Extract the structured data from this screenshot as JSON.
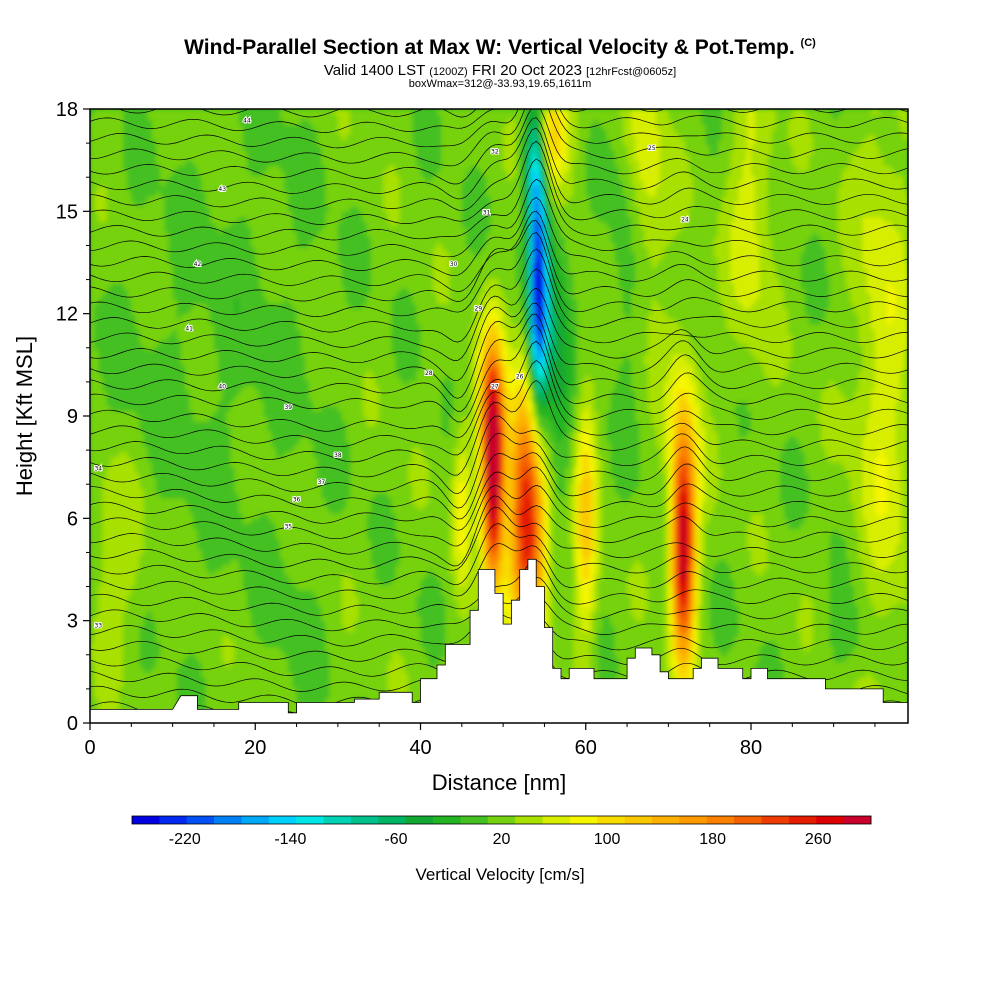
{
  "header": {
    "title": "Wind-Parallel Section at Max W: Vertical Velocity & Pot.Temp.",
    "copyright": "(C)",
    "valid_main": "Valid 1400 LST",
    "valid_utc": "(1200Z)",
    "valid_date": "FRI 20 Oct 2023",
    "forecast_note": "[12hrFcst@0605z]",
    "box_info": "boxWmax=312@-33.93,19.65,1611m"
  },
  "chart_data": {
    "type": "heatmap",
    "title": "Wind-Parallel Section at Max W: Vertical Velocity & Pot.Temp.",
    "xlabel": "Distance [nm]",
    "ylabel": "Height [Kft MSL]",
    "xlim": [
      0,
      99
    ],
    "ylim": [
      0,
      18
    ],
    "x_ticks": [
      0,
      20,
      40,
      60,
      80
    ],
    "y_ticks": [
      0,
      3,
      6,
      9,
      12,
      15,
      18
    ],
    "colorbar": {
      "label": "Vertical Velocity [cm/s]",
      "tick_labels": [
        -220,
        -140,
        -60,
        20,
        100,
        180,
        260
      ],
      "min": -260,
      "max": 300,
      "colors": [
        "#0000e0",
        "#0028f0",
        "#0050f5",
        "#0080f5",
        "#00a8f8",
        "#00d0ff",
        "#00e6e6",
        "#00d2b4",
        "#00c08c",
        "#00b464",
        "#12a832",
        "#22b422",
        "#44c022",
        "#76d210",
        "#a8e000",
        "#d8ee00",
        "#f6f600",
        "#f8dc00",
        "#fac800",
        "#fcb000",
        "#fc9a00",
        "#fa8000",
        "#f46000",
        "#ee3c00",
        "#e61c00",
        "#dc0000",
        "#c8002a"
      ]
    },
    "w_features": [
      {
        "x": 48.8,
        "z": 7.2,
        "w": 300
      },
      {
        "x": 52.5,
        "z": 6.8,
        "w": 160
      },
      {
        "x": 54.3,
        "z": 12.5,
        "w": -220
      },
      {
        "x": 55.5,
        "z": 17.5,
        "w": 120
      },
      {
        "x": 60.0,
        "z": 6.0,
        "w": 100
      },
      {
        "x": 71.8,
        "z": 5.0,
        "w": 280
      },
      {
        "x": 45.0,
        "z": 6.5,
        "w": 60
      }
    ],
    "terrain": [
      [
        0,
        0.4
      ],
      [
        10,
        0.4
      ],
      [
        11,
        0.8
      ],
      [
        13,
        0.8
      ],
      [
        13,
        0.4
      ],
      [
        18,
        0.4
      ],
      [
        18,
        0.6
      ],
      [
        24,
        0.6
      ],
      [
        24,
        0.3
      ],
      [
        25,
        0.3
      ],
      [
        25,
        0.6
      ],
      [
        30,
        0.6
      ],
      [
        32,
        0.6
      ],
      [
        32,
        0.7
      ],
      [
        35,
        0.7
      ],
      [
        35,
        0.9
      ],
      [
        39,
        0.9
      ],
      [
        39,
        0.6
      ],
      [
        40,
        0.6
      ],
      [
        40,
        1.3
      ],
      [
        42,
        1.3
      ],
      [
        42,
        1.7
      ],
      [
        43,
        1.7
      ],
      [
        43,
        2.3
      ],
      [
        46,
        2.3
      ],
      [
        46,
        3.3
      ],
      [
        47,
        3.3
      ],
      [
        47,
        4.5
      ],
      [
        49,
        4.5
      ],
      [
        49,
        3.8
      ],
      [
        50,
        3.8
      ],
      [
        50,
        2.9
      ],
      [
        51,
        2.9
      ],
      [
        51,
        3.6
      ],
      [
        52,
        3.6
      ],
      [
        52,
        4.5
      ],
      [
        53,
        4.5
      ],
      [
        53,
        4.8
      ],
      [
        54,
        4.8
      ],
      [
        54,
        4.0
      ],
      [
        55,
        4.0
      ],
      [
        55,
        2.8
      ],
      [
        56,
        2.8
      ],
      [
        56,
        1.6
      ],
      [
        57,
        1.6
      ],
      [
        57,
        1.3
      ],
      [
        58,
        1.3
      ],
      [
        58,
        1.6
      ],
      [
        61,
        1.6
      ],
      [
        61,
        1.3
      ],
      [
        65,
        1.3
      ],
      [
        65,
        1.9
      ],
      [
        66,
        1.9
      ],
      [
        66,
        2.2
      ],
      [
        68,
        2.2
      ],
      [
        68,
        2.0
      ],
      [
        69,
        2.0
      ],
      [
        69,
        1.5
      ],
      [
        70,
        1.5
      ],
      [
        70,
        1.3
      ],
      [
        73,
        1.3
      ],
      [
        73,
        1.6
      ],
      [
        74,
        1.6
      ],
      [
        74,
        1.9
      ],
      [
        76,
        1.9
      ],
      [
        76,
        1.6
      ],
      [
        79,
        1.6
      ],
      [
        79,
        1.3
      ],
      [
        80,
        1.3
      ],
      [
        80,
        1.6
      ],
      [
        82,
        1.6
      ],
      [
        82,
        1.3
      ],
      [
        89,
        1.3
      ],
      [
        89,
        1.0
      ],
      [
        96,
        1.0
      ],
      [
        96,
        0.6
      ],
      [
        99,
        0.6
      ]
    ],
    "theta_labels": [
      "44",
      "43",
      "42",
      "41",
      "40",
      "39",
      "38",
      "37",
      "36",
      "35",
      "34",
      "33",
      "32",
      "31",
      "30",
      "29",
      "28",
      "27",
      "26",
      "25",
      "24"
    ]
  }
}
